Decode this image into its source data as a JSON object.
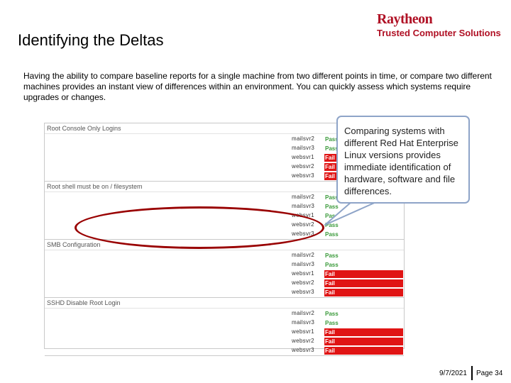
{
  "slide": {
    "title": "Identifying the Deltas",
    "intro": "Having the ability to compare baseline reports for a single machine from two different points in time, or compare two different machines provides an instant view of differences within an environment.  You can quickly assess which systems require upgrades or changes."
  },
  "logo": {
    "brand": "Raytheon",
    "subtitle": "Trusted Computer Solutions"
  },
  "report": {
    "sections": [
      {
        "title": "Root Console Only Logins",
        "rows": [
          {
            "host": "mailsvr2",
            "status": "Pass"
          },
          {
            "host": "mailsvr3",
            "status": "Pass"
          },
          {
            "host": "websvr1",
            "status": "Fail"
          },
          {
            "host": "websvr2",
            "status": "Fail"
          },
          {
            "host": "websvr3",
            "status": "Fail"
          }
        ]
      },
      {
        "title": "Root shell must be on / filesystem",
        "rows": [
          {
            "host": "mailsvr2",
            "status": "Pass"
          },
          {
            "host": "mailsvr3",
            "status": "Pass"
          },
          {
            "host": "websvr1",
            "status": "Pass"
          },
          {
            "host": "websvr2",
            "status": "Pass"
          },
          {
            "host": "websvr3",
            "status": "Pass"
          }
        ]
      },
      {
        "title": "SMB Configuration",
        "rows": [
          {
            "host": "mailsvr2",
            "status": "Pass"
          },
          {
            "host": "mailsvr3",
            "status": "Pass"
          },
          {
            "host": "websvr1",
            "status": "Fail"
          },
          {
            "host": "websvr2",
            "status": "Fail"
          },
          {
            "host": "websvr3",
            "status": "Fail"
          }
        ]
      },
      {
        "title": "SSHD Disable Root Login",
        "rows": [
          {
            "host": "mailsvr2",
            "status": "Pass"
          },
          {
            "host": "mailsvr3",
            "status": "Pass"
          },
          {
            "host": "websvr1",
            "status": "Fail"
          },
          {
            "host": "websvr2",
            "status": "Fail"
          },
          {
            "host": "websvr3",
            "status": "Fail"
          }
        ]
      }
    ]
  },
  "callout": {
    "text": "Comparing systems with different Red Hat Enterprise Linux versions provides immediate identification of hardware, software and file differences."
  },
  "footer": {
    "date": "9/7/2021",
    "page": "Page 34"
  },
  "colors": {
    "brand_red": "#b01125",
    "pass": "#3a9a3a",
    "fail": "#e01414",
    "callout_border": "#8ea4c8",
    "highlight_ellipse": "#990000"
  }
}
